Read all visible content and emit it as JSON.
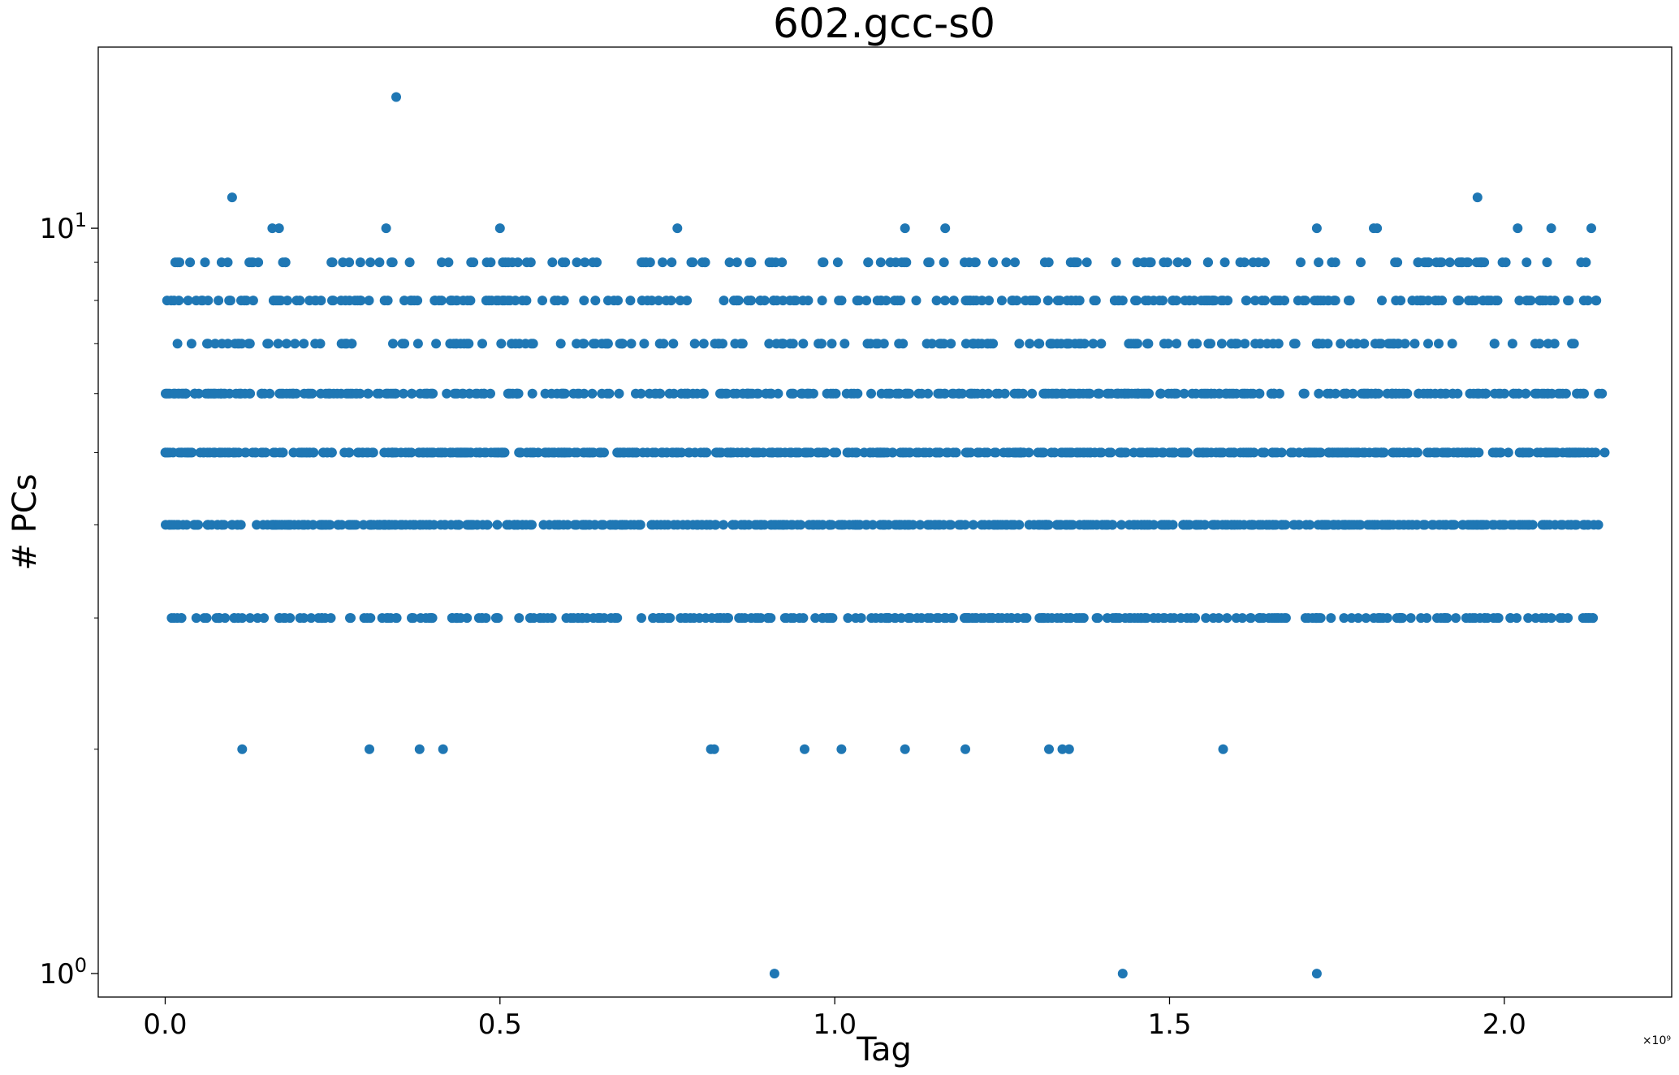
{
  "chart_data": {
    "type": "scatter",
    "title": "602.gcc-s0",
    "xlabel": "Tag",
    "ylabel": "# PCs",
    "x_offset_label": "×10⁹",
    "x_scale_exponent": 9,
    "xlim": [
      -0.1,
      2.25
    ],
    "ylim": [
      0.93,
      17.5
    ],
    "yscale": "log",
    "x_ticks": [
      0.0,
      0.5,
      1.0,
      1.5,
      2.0
    ],
    "x_tick_labels": [
      "0.0",
      "0.5",
      "1.0",
      "1.5",
      "2.0"
    ],
    "y_major_ticks": [
      1,
      10
    ],
    "y_major_labels": [
      {
        "base": "10",
        "exp": "0"
      },
      {
        "base": "10",
        "exp": "1"
      }
    ],
    "y_minor_ticks": [
      2,
      3,
      4,
      5,
      6,
      7,
      8,
      9
    ],
    "grid": false,
    "legend": "none",
    "marker_color": "#1f77b4",
    "outliers": [
      {
        "x": 0.345,
        "y": 15
      },
      {
        "x": 0.1,
        "y": 11
      },
      {
        "x": 1.96,
        "y": 11
      },
      {
        "x": 0.16,
        "y": 10
      },
      {
        "x": 0.17,
        "y": 10
      },
      {
        "x": 0.33,
        "y": 10
      },
      {
        "x": 0.5,
        "y": 10
      },
      {
        "x": 0.765,
        "y": 10
      },
      {
        "x": 1.105,
        "y": 10
      },
      {
        "x": 1.165,
        "y": 10
      },
      {
        "x": 1.72,
        "y": 10
      },
      {
        "x": 1.805,
        "y": 10
      },
      {
        "x": 1.81,
        "y": 10
      },
      {
        "x": 2.02,
        "y": 10
      },
      {
        "x": 2.07,
        "y": 10
      },
      {
        "x": 2.13,
        "y": 10
      },
      {
        "x": 0.115,
        "y": 2
      },
      {
        "x": 0.305,
        "y": 2
      },
      {
        "x": 0.38,
        "y": 2
      },
      {
        "x": 0.415,
        "y": 2
      },
      {
        "x": 0.815,
        "y": 2
      },
      {
        "x": 0.82,
        "y": 2
      },
      {
        "x": 0.955,
        "y": 2
      },
      {
        "x": 1.01,
        "y": 2
      },
      {
        "x": 1.105,
        "y": 2
      },
      {
        "x": 1.195,
        "y": 2
      },
      {
        "x": 1.32,
        "y": 2
      },
      {
        "x": 1.34,
        "y": 2
      },
      {
        "x": 1.35,
        "y": 2
      },
      {
        "x": 1.58,
        "y": 2
      },
      {
        "x": 0.91,
        "y": 1
      },
      {
        "x": 1.43,
        "y": 1
      },
      {
        "x": 1.72,
        "y": 1
      }
    ],
    "bands": [
      {
        "y": 9,
        "x_start": 0.015,
        "x_end": 2.13,
        "count": 150
      },
      {
        "y": 8,
        "x_start": 0.0,
        "x_end": 2.15,
        "count": 260
      },
      {
        "y": 7,
        "x_start": 0.015,
        "x_end": 2.115,
        "count": 200
      },
      {
        "y": 6,
        "x_start": 0.0,
        "x_end": 2.15,
        "count": 420
      },
      {
        "y": 5,
        "x_start": 0.0,
        "x_end": 2.15,
        "count": 560
      },
      {
        "y": 4,
        "x_start": 0.0,
        "x_end": 2.15,
        "count": 580
      },
      {
        "y": 3,
        "x_start": 0.005,
        "x_end": 2.14,
        "count": 330
      }
    ]
  }
}
